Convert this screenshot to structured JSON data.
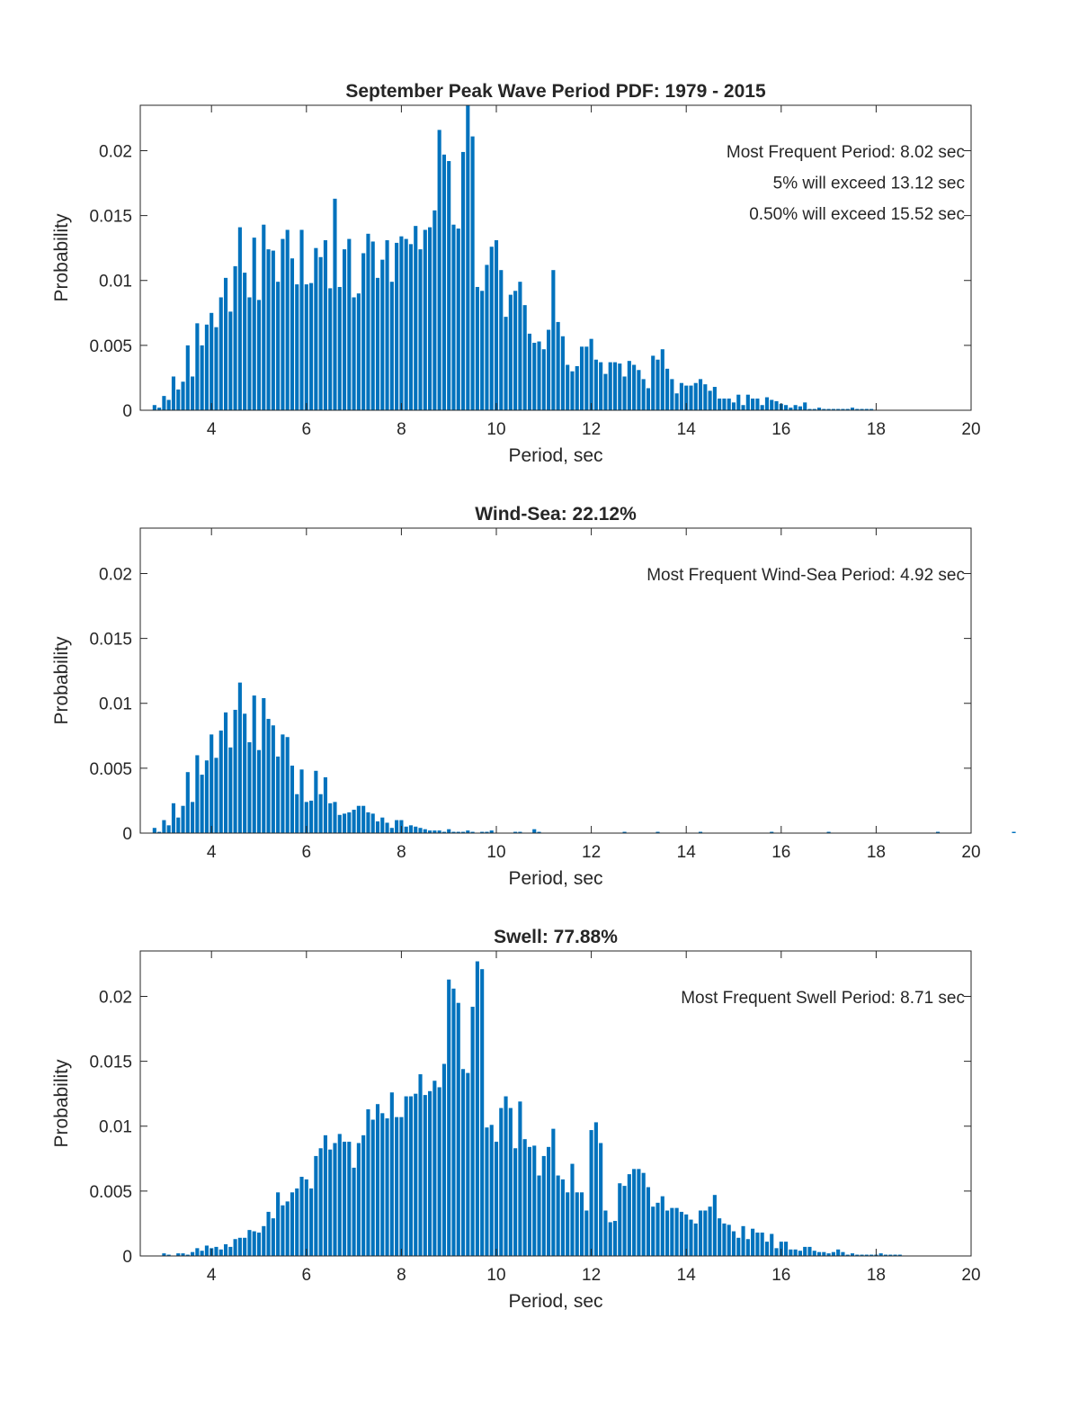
{
  "colors": {
    "bar": "#0072BD",
    "axis": "#262626",
    "background": "#ffffff"
  },
  "chart_data": [
    {
      "type": "bar",
      "title": "September Peak Wave Period PDF: 1979 - 2015",
      "xlabel": "Period, sec",
      "ylabel": "Probability",
      "xlim": [
        2.5,
        20
      ],
      "ylim": [
        0,
        0.0235
      ],
      "xticks": [
        "4",
        "6",
        "8",
        "10",
        "12",
        "14",
        "16",
        "18",
        "20"
      ],
      "yticks": [
        "0",
        "0.005",
        "0.01",
        "0.015",
        "0.02"
      ],
      "grid": false,
      "annotations": [
        "Most Frequent Period: 8.02 sec",
        "5% will exceed 13.12 sec",
        "0.50% will exceed 15.52 sec"
      ],
      "x_start": 2.8,
      "bin_width": 0.1,
      "values": [
        0.0004,
        0.0002,
        0.0011,
        0.0008,
        0.0026,
        0.0016,
        0.0022,
        0.005,
        0.0026,
        0.0067,
        0.005,
        0.0066,
        0.0075,
        0.0064,
        0.0087,
        0.0102,
        0.0076,
        0.0111,
        0.0141,
        0.0106,
        0.0087,
        0.0133,
        0.0085,
        0.0143,
        0.0124,
        0.0123,
        0.0099,
        0.0132,
        0.0139,
        0.0117,
        0.0097,
        0.0139,
        0.0097,
        0.0098,
        0.0125,
        0.0118,
        0.0131,
        0.0094,
        0.0163,
        0.0095,
        0.0124,
        0.0132,
        0.0087,
        0.009,
        0.0121,
        0.0136,
        0.013,
        0.0102,
        0.0116,
        0.0131,
        0.0099,
        0.0129,
        0.0134,
        0.0132,
        0.0128,
        0.0142,
        0.0124,
        0.0139,
        0.0141,
        0.0154,
        0.0216,
        0.0197,
        0.0192,
        0.0143,
        0.014,
        0.0199,
        0.0235,
        0.0211,
        0.0095,
        0.0092,
        0.0112,
        0.0126,
        0.0131,
        0.0108,
        0.0072,
        0.0089,
        0.0092,
        0.0099,
        0.0081,
        0.0059,
        0.0052,
        0.0053,
        0.0047,
        0.0062,
        0.0108,
        0.0068,
        0.0057,
        0.0035,
        0.003,
        0.0034,
        0.0049,
        0.0049,
        0.0055,
        0.0039,
        0.0037,
        0.0028,
        0.0037,
        0.0037,
        0.0036,
        0.0026,
        0.0038,
        0.0035,
        0.0031,
        0.0024,
        0.0017,
        0.0042,
        0.0039,
        0.0047,
        0.0032,
        0.0024,
        0.0013,
        0.0021,
        0.0019,
        0.0019,
        0.0021,
        0.0024,
        0.002,
        0.0015,
        0.0018,
        0.0009,
        0.0009,
        0.0009,
        0.0006,
        0.0012,
        0.0004,
        0.0012,
        0.0009,
        0.0009,
        0.0004,
        0.001,
        0.0008,
        0.0007,
        0.0005,
        0.0004,
        0.0002,
        0.0004,
        0.0003,
        0.0006,
        0.0001,
        0.0001,
        0.0002,
        0.0001,
        0.0001,
        0.0001,
        0.0001,
        0.0001,
        0.0001,
        0.0002,
        0.0001,
        0.0001,
        0.0001,
        0.0001
      ]
    },
    {
      "type": "bar",
      "title": "Wind-Sea: 22.12%",
      "xlabel": "Period, sec",
      "ylabel": "Probability",
      "xlim": [
        2.5,
        20
      ],
      "ylim": [
        0,
        0.0235
      ],
      "xticks": [
        "4",
        "6",
        "8",
        "10",
        "12",
        "14",
        "16",
        "18",
        "20"
      ],
      "yticks": [
        "0",
        "0.005",
        "0.01",
        "0.015",
        "0.02"
      ],
      "grid": false,
      "annotations": [
        "Most Frequent Wind-Sea Period: 4.92 sec"
      ],
      "x_start": 2.8,
      "bin_width": 0.1,
      "values": [
        0.0004,
        0.0001,
        0.001,
        0.0006,
        0.0023,
        0.0012,
        0.0021,
        0.0047,
        0.0024,
        0.006,
        0.0045,
        0.0056,
        0.0076,
        0.0058,
        0.0079,
        0.0093,
        0.0066,
        0.0095,
        0.0116,
        0.0092,
        0.007,
        0.0106,
        0.0064,
        0.0104,
        0.0088,
        0.0083,
        0.0059,
        0.0076,
        0.0074,
        0.0052,
        0.003,
        0.0049,
        0.0024,
        0.0025,
        0.0048,
        0.003,
        0.0043,
        0.0023,
        0.0024,
        0.0014,
        0.0015,
        0.0016,
        0.0018,
        0.0021,
        0.0021,
        0.0016,
        0.0015,
        0.0009,
        0.0012,
        0.0008,
        0.0004,
        0.001,
        0.001,
        0.0005,
        0.0006,
        0.0005,
        0.0004,
        0.0003,
        0.0002,
        0.0002,
        0.0002,
        0.0001,
        0.0003,
        0.0001,
        0.0001,
        0.0001,
        0.0002,
        0.0001,
        0,
        0.0001,
        0.0001,
        0.0002,
        0,
        0,
        0,
        0,
        0.0001,
        0.0001,
        0,
        0,
        0.0003,
        0.0001,
        0,
        0,
        0,
        0,
        0,
        0,
        0,
        0,
        0,
        0,
        0,
        0,
        0,
        0,
        0,
        0,
        0,
        0.0001,
        0,
        0,
        0,
        0,
        0,
        0,
        0.0001,
        0,
        0,
        0,
        0,
        0,
        0,
        0,
        0,
        0.0001,
        0,
        0,
        0,
        0,
        0,
        0,
        0,
        0,
        0,
        0,
        0,
        0,
        0,
        0,
        0.0001,
        0,
        0,
        0,
        0,
        0,
        0,
        0,
        0,
        0,
        0,
        0,
        0.0001,
        0,
        0,
        0,
        0,
        0,
        0,
        0,
        0,
        0,
        0,
        0,
        0,
        0,
        0,
        0,
        0,
        0,
        0,
        0,
        0,
        0,
        0,
        0.0001,
        0,
        0,
        0,
        0,
        0,
        0,
        0,
        0,
        0,
        0,
        0,
        0,
        0,
        0,
        0,
        0.0001,
        0,
        0,
        0,
        0,
        0,
        0,
        0,
        0,
        0,
        0,
        0,
        0,
        0,
        0,
        0.0001,
        0,
        0,
        0,
        0,
        0,
        0,
        0,
        0,
        0,
        0,
        0,
        0,
        0,
        0,
        0,
        0,
        0,
        0,
        0,
        0,
        0,
        0,
        0,
        0,
        0,
        0,
        0,
        0,
        0,
        0,
        0,
        0,
        0,
        0,
        0,
        0,
        0,
        0,
        0,
        0,
        0,
        0,
        0,
        0,
        0,
        0,
        0,
        0,
        0,
        0,
        0,
        0,
        0,
        0,
        0,
        0,
        0,
        0,
        0,
        0,
        0,
        0,
        0,
        0,
        0,
        0,
        0,
        0,
        0,
        0,
        0,
        0,
        0,
        0,
        0,
        0,
        0,
        0,
        0,
        0,
        0,
        0,
        0,
        0,
        0,
        0,
        0,
        0,
        0,
        0,
        0,
        0,
        0,
        0,
        0,
        0,
        0,
        0,
        0,
        0,
        0,
        0,
        0,
        0,
        0,
        0,
        0,
        0,
        0,
        0
      ]
    },
    {
      "type": "bar",
      "title": "Swell: 77.88%",
      "xlabel": "Period, sec",
      "ylabel": "Probability",
      "xlim": [
        2.5,
        20
      ],
      "ylim": [
        0,
        0.0235
      ],
      "xticks": [
        "4",
        "6",
        "8",
        "10",
        "12",
        "14",
        "16",
        "18",
        "20"
      ],
      "yticks": [
        "0",
        "0.005",
        "0.01",
        "0.015",
        "0.02"
      ],
      "grid": false,
      "annotations": [
        "Most Frequent Swell Period: 8.71 sec"
      ],
      "x_start": 3.0,
      "bin_width": 0.1,
      "values": [
        0.0002,
        0.0001,
        0,
        0.0002,
        0.0002,
        0.0001,
        0.0003,
        0.0006,
        0.0004,
        0.0008,
        0.0006,
        0.0007,
        0.0005,
        0.0009,
        0.0007,
        0.0013,
        0.0014,
        0.0014,
        0.002,
        0.0019,
        0.0018,
        0.0023,
        0.0034,
        0.0029,
        0.0049,
        0.0039,
        0.0042,
        0.0049,
        0.0052,
        0.0061,
        0.0059,
        0.0052,
        0.0077,
        0.0083,
        0.0093,
        0.0082,
        0.0087,
        0.0094,
        0.0088,
        0.0088,
        0.0068,
        0.0087,
        0.0093,
        0.0113,
        0.0105,
        0.0117,
        0.011,
        0.0106,
        0.0126,
        0.0107,
        0.0107,
        0.0123,
        0.0123,
        0.0125,
        0.014,
        0.0124,
        0.0127,
        0.0135,
        0.013,
        0.0148,
        0.0213,
        0.0206,
        0.0195,
        0.0144,
        0.0141,
        0.0192,
        0.0227,
        0.0221,
        0.0099,
        0.0101,
        0.0088,
        0.0114,
        0.0123,
        0.0114,
        0.0083,
        0.0119,
        0.009,
        0.0084,
        0.0085,
        0.0062,
        0.0077,
        0.0084,
        0.0098,
        0.0062,
        0.0059,
        0.0049,
        0.0071,
        0.0049,
        0.0049,
        0.0035,
        0.0097,
        0.0103,
        0.0087,
        0.0035,
        0.0026,
        0.0027,
        0.0056,
        0.0054,
        0.0063,
        0.0067,
        0.0067,
        0.0064,
        0.0053,
        0.0038,
        0.0041,
        0.0046,
        0.0035,
        0.0037,
        0.0037,
        0.0034,
        0.0032,
        0.0028,
        0.0025,
        0.0035,
        0.0035,
        0.0038,
        0.0047,
        0.0029,
        0.0025,
        0.0024,
        0.0019,
        0.0014,
        0.0023,
        0.0013,
        0.0021,
        0.0018,
        0.0018,
        0.0011,
        0.0017,
        0.0006,
        0.0011,
        0.0011,
        0.0005,
        0.0005,
        0.0004,
        0.0007,
        0.0007,
        0.0004,
        0.0003,
        0.0003,
        0.0002,
        0.0003,
        0.0005,
        0.0003,
        0.0001,
        0.0002,
        0.0001,
        0.0001,
        0.0001,
        0.0001,
        0.0001,
        0.0002,
        0.0001,
        0.0001,
        0.0001,
        0.0001
      ]
    }
  ]
}
